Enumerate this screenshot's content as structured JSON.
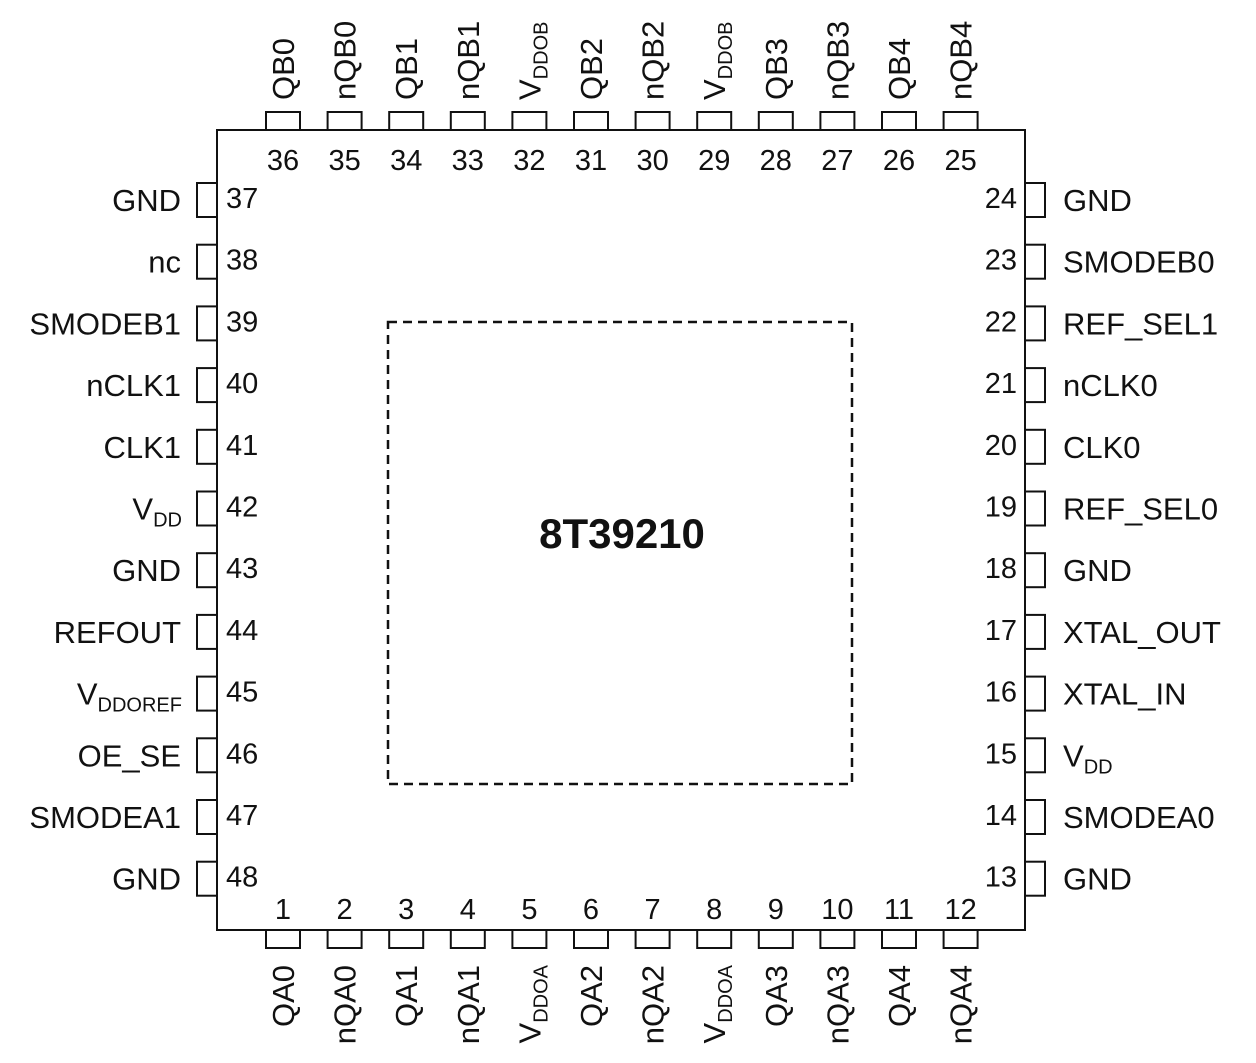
{
  "chip": {
    "part_number": "8T39210"
  },
  "pins": {
    "top": [
      {
        "num": "36",
        "name": "QB0"
      },
      {
        "num": "35",
        "name": "nQB0"
      },
      {
        "num": "34",
        "name": "QB1"
      },
      {
        "num": "33",
        "name": "nQB1"
      },
      {
        "num": "32",
        "name": "V",
        "sub": "DDOB"
      },
      {
        "num": "31",
        "name": "QB2"
      },
      {
        "num": "30",
        "name": "nQB2"
      },
      {
        "num": "29",
        "name": "V",
        "sub": "DDOB"
      },
      {
        "num": "28",
        "name": "QB3"
      },
      {
        "num": "27",
        "name": "nQB3"
      },
      {
        "num": "26",
        "name": "QB4"
      },
      {
        "num": "25",
        "name": "nQB4"
      }
    ],
    "left": [
      {
        "num": "37",
        "name": "GND"
      },
      {
        "num": "38",
        "name": "nc"
      },
      {
        "num": "39",
        "name": "SMODEB1"
      },
      {
        "num": "40",
        "name": "nCLK1"
      },
      {
        "num": "41",
        "name": "CLK1"
      },
      {
        "num": "42",
        "name": "V",
        "sub": "DD"
      },
      {
        "num": "43",
        "name": "GND"
      },
      {
        "num": "44",
        "name": "REFOUT"
      },
      {
        "num": "45",
        "name": "V",
        "sub": "DDOREF"
      },
      {
        "num": "46",
        "name": "OE_SE"
      },
      {
        "num": "47",
        "name": "SMODEA1"
      },
      {
        "num": "48",
        "name": "GND"
      }
    ],
    "right": [
      {
        "num": "24",
        "name": "GND"
      },
      {
        "num": "23",
        "name": "SMODEB0"
      },
      {
        "num": "22",
        "name": "REF_SEL1"
      },
      {
        "num": "21",
        "name": "nCLK0"
      },
      {
        "num": "20",
        "name": "CLK0"
      },
      {
        "num": "19",
        "name": "REF_SEL0"
      },
      {
        "num": "18",
        "name": "GND"
      },
      {
        "num": "17",
        "name": "XTAL_OUT"
      },
      {
        "num": "16",
        "name": "XTAL_IN"
      },
      {
        "num": "15",
        "name": "V",
        "sub": "DD"
      },
      {
        "num": "14",
        "name": "SMODEA0"
      },
      {
        "num": "13",
        "name": "GND"
      }
    ],
    "bottom": [
      {
        "num": "1",
        "name": "QA0"
      },
      {
        "num": "2",
        "name": "nQA0"
      },
      {
        "num": "3",
        "name": "QA1"
      },
      {
        "num": "4",
        "name": "nQA1"
      },
      {
        "num": "5",
        "name": "V",
        "sub": "DDOA"
      },
      {
        "num": "6",
        "name": "QA2"
      },
      {
        "num": "7",
        "name": "nQA2"
      },
      {
        "num": "8",
        "name": "V",
        "sub": "DDOA"
      },
      {
        "num": "9",
        "name": "QA3"
      },
      {
        "num": "10",
        "name": "nQA3"
      },
      {
        "num": "11",
        "name": "QA4"
      },
      {
        "num": "12",
        "name": "nQA4"
      }
    ]
  }
}
